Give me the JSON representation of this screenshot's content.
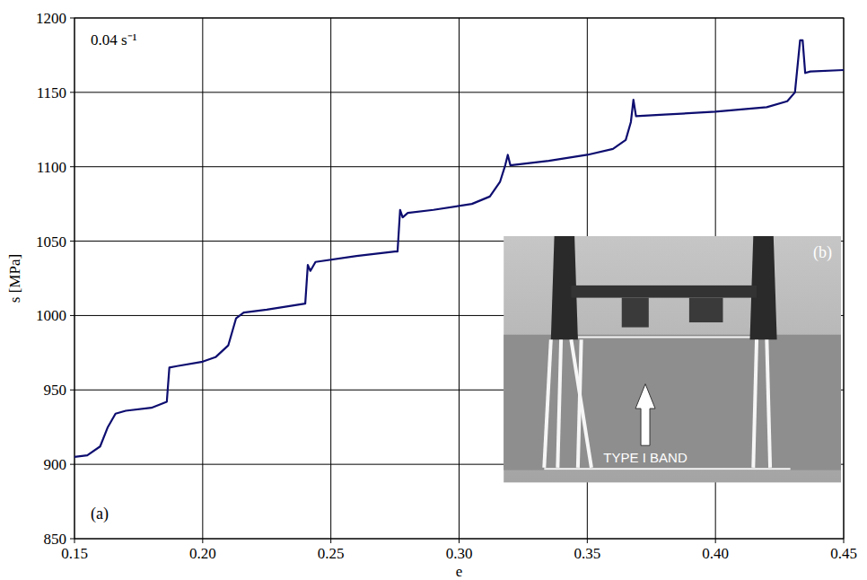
{
  "chart_data": {
    "type": "line",
    "x_label": "e",
    "y_label": "s [MPa]",
    "annotation": "0.04 s⁻¹",
    "panel_label": "(a)",
    "inset_label": "(b)",
    "inset_caption": "TYPE I BAND",
    "xlim": [
      0.15,
      0.45
    ],
    "ylim": [
      850,
      1200
    ],
    "xticks": [
      0.15,
      {
        "value": 0.2,
        "label": "0.20"
      },
      0.25,
      {
        "value": 0.3,
        "label": "0.30"
      },
      0.35,
      {
        "value": 0.4,
        "label": "0.40"
      },
      0.45
    ],
    "yticks": [
      850,
      900,
      950,
      1000,
      1050,
      1100,
      1150,
      1200
    ],
    "grid": true,
    "x": [
      0.15,
      0.155,
      0.16,
      0.163,
      0.166,
      0.17,
      0.18,
      0.186,
      0.187,
      0.19,
      0.2,
      0.205,
      0.21,
      0.213,
      0.216,
      0.225,
      0.24,
      0.241,
      0.242,
      0.244,
      0.26,
      0.275,
      0.276,
      0.277,
      0.278,
      0.28,
      0.29,
      0.305,
      0.312,
      0.316,
      0.318,
      0.319,
      0.32,
      0.335,
      0.35,
      0.36,
      0.365,
      0.367,
      0.368,
      0.369,
      0.38,
      0.4,
      0.42,
      0.428,
      0.431,
      0.433,
      0.434,
      0.435,
      0.437,
      0.45
    ],
    "series": [
      {
        "color": "#0d0d70",
        "line_style": "solid",
        "values": [
          905,
          906,
          912,
          925,
          934,
          936,
          938,
          942,
          965,
          966,
          969,
          972,
          980,
          998,
          1002,
          1004,
          1008,
          1034,
          1030,
          1036,
          1040,
          1043,
          1043,
          1071,
          1066,
          1069,
          1071,
          1075,
          1080,
          1090,
          1101,
          1108,
          1101,
          1104,
          1108,
          1112,
          1118,
          1130,
          1145,
          1134,
          1135,
          1137,
          1140,
          1144,
          1150,
          1185,
          1185,
          1163,
          1164,
          1165
        ]
      }
    ]
  }
}
